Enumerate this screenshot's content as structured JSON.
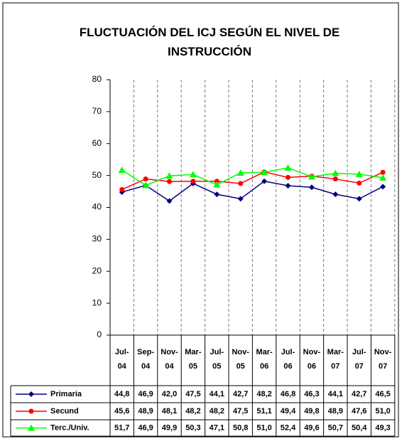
{
  "chart_data": {
    "type": "line",
    "title": "FLUCTUACIÓN DEL ICJ SEGÚN EL NIVEL DE INSTRUCCIÓN",
    "categories": [
      "Jul-04",
      "Sep-04",
      "Nov-04",
      "Mar-05",
      "Jul-05",
      "Nov-05",
      "Mar-06",
      "Jul-06",
      "Nov-06",
      "Mar-07",
      "Jul-07",
      "Nov-07"
    ],
    "series": [
      {
        "name": "Primaria",
        "color": "#000080",
        "marker": "diamond",
        "values": [
          44.8,
          46.9,
          42.0,
          47.5,
          44.1,
          42.7,
          48.2,
          46.8,
          46.3,
          44.1,
          42.7,
          46.5
        ],
        "value_labels": [
          "44,8",
          "46,9",
          "42,0",
          "47,5",
          "44,1",
          "42,7",
          "48,2",
          "46,8",
          "46,3",
          "44,1",
          "42,7",
          "46,5"
        ]
      },
      {
        "name": "Secund",
        "color": "#ff0000",
        "marker": "circle",
        "values": [
          45.6,
          48.9,
          48.1,
          48.2,
          48.2,
          47.5,
          51.1,
          49.4,
          49.8,
          48.9,
          47.6,
          51.0
        ],
        "value_labels": [
          "45,6",
          "48,9",
          "48,1",
          "48,2",
          "48,2",
          "47,5",
          "51,1",
          "49,4",
          "49,8",
          "48,9",
          "47,6",
          "51,0"
        ]
      },
      {
        "name": "Terc./Univ.",
        "color": "#00ff00",
        "marker": "triangle",
        "values": [
          51.7,
          46.9,
          49.9,
          50.3,
          47.1,
          50.8,
          51.0,
          52.4,
          49.6,
          50.7,
          50.4,
          49.3
        ],
        "value_labels": [
          "51,7",
          "46,9",
          "49,9",
          "50,3",
          "47,1",
          "50,8",
          "51,0",
          "52,4",
          "49,6",
          "50,7",
          "50,4",
          "49,3"
        ]
      }
    ],
    "ylim": [
      0,
      80
    ],
    "yticks": [
      0,
      10,
      20,
      30,
      40,
      50,
      60,
      70,
      80
    ],
    "x_grid": true
  }
}
